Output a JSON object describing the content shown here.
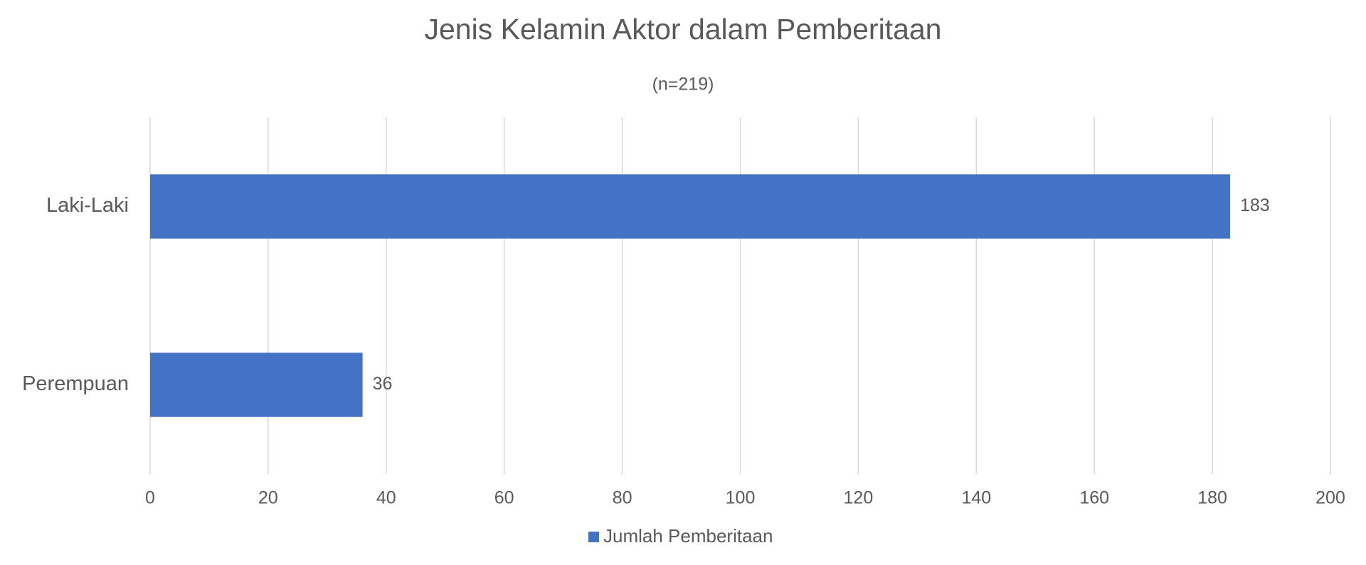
{
  "chart_data": {
    "type": "hbar",
    "title": "Jenis Kelamin Aktor dalam Pemberitaan",
    "subtitle": "(n=219)",
    "categories": [
      "Laki-Laki",
      "Perempuan"
    ],
    "series": [
      {
        "name": "Jumlah Pemberitaan",
        "color": "#4472c4",
        "values": [
          183,
          36
        ]
      }
    ],
    "xlim": [
      0,
      200
    ],
    "xticks": [
      0,
      20,
      40,
      60,
      80,
      100,
      120,
      140,
      160,
      180,
      200
    ],
    "grid": true,
    "legend": "bottom"
  }
}
